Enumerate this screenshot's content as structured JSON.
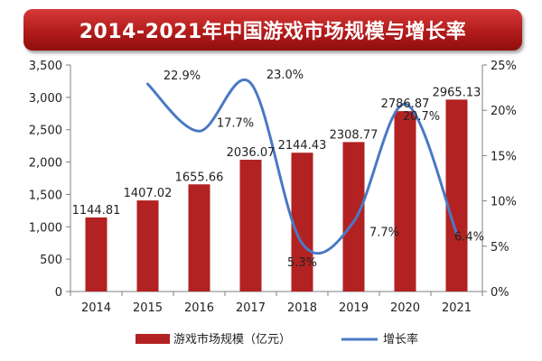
{
  "chart_data": {
    "type": "bar",
    "title": "2014-2021年中国游戏市场规模与增长率",
    "categories": [
      "2014",
      "2015",
      "2016",
      "2017",
      "2018",
      "2019",
      "2020",
      "2021"
    ],
    "series": [
      {
        "name": "游戏市场规模（亿元）",
        "type": "bar",
        "axis": "left",
        "color": "#b22222",
        "values": [
          1144.81,
          1407.02,
          1655.66,
          2036.07,
          2144.43,
          2308.77,
          2786.87,
          2965.13
        ],
        "labels": [
          "1144.81",
          "1407.02",
          "1655.66",
          "2036.07",
          "2144.43",
          "2308.77",
          "2786.87",
          "2965.13"
        ]
      },
      {
        "name": "增长率",
        "type": "line",
        "axis": "right",
        "color": "#4a79c4",
        "x": [
          "2015",
          "2016",
          "2017",
          "2018",
          "2019",
          "2020",
          "2021"
        ],
        "values": [
          22.9,
          17.7,
          23.0,
          5.3,
          7.7,
          20.7,
          6.4
        ],
        "labels": [
          "22.9%",
          "17.7%",
          "23.0%",
          "5.3%",
          "7.7%",
          "20.7%",
          "6.4%"
        ]
      }
    ],
    "y_left": {
      "range": [
        0,
        3500
      ],
      "ticks": [
        "0",
        "500",
        "1,000",
        "1,500",
        "2,000",
        "2,500",
        "3,000",
        "3,500"
      ]
    },
    "y_right": {
      "range": [
        0,
        25
      ],
      "ticks": [
        "0%",
        "5%",
        "10%",
        "15%",
        "20%",
        "25%"
      ]
    },
    "grid": false,
    "legend_position": "bottom"
  }
}
